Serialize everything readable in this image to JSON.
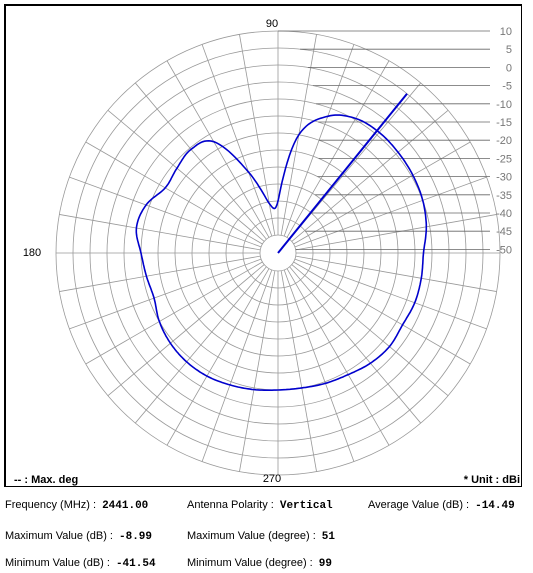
{
  "chart_data": {
    "type": "polar_line",
    "angle_labels": {
      "top": "90",
      "left": "180",
      "bottom": "270"
    },
    "radial_ticks": [
      "10",
      "5",
      "0",
      "-5",
      "-10",
      "-15",
      "-20",
      "-25",
      "-30",
      "-35",
      "-40",
      "-45",
      "-50"
    ],
    "rlim": [
      -50,
      10
    ],
    "radial_rings_db": [
      10,
      5,
      0,
      -5,
      -10,
      -15,
      -20,
      -25,
      -30,
      -35,
      -40,
      -45,
      -50
    ],
    "angular_grid_step_deg": 10,
    "grid": true,
    "series": [
      {
        "color": "#0000cc",
        "angles_deg": [
          0,
          10,
          20,
          30,
          40,
          50,
          60,
          70,
          80,
          90,
          100,
          110,
          120,
          130,
          140,
          150,
          160,
          170,
          180,
          190,
          200,
          210,
          220,
          230,
          240,
          250,
          260,
          270,
          280,
          290,
          300,
          310,
          320,
          330,
          340,
          350
        ],
        "values_db": [
          -12.5,
          -11,
          -10,
          -9.5,
          -9.2,
          -9.0,
          -9.6,
          -12.5,
          -20,
          -40,
          -40.5,
          -30,
          -17.5,
          -15.5,
          -16.5,
          -17,
          -14,
          -13,
          -15,
          -16,
          -16.5,
          -15,
          -14,
          -13.5,
          -13.5,
          -14,
          -14.5,
          -15,
          -15,
          -14.5,
          -14,
          -13,
          -12.5,
          -13,
          -12.5,
          -12.5
        ]
      },
      {
        "name": "Max. deg",
        "color": "#0000cc",
        "marker_angle_deg": 51,
        "marker_value_db": 5
      }
    ],
    "legend": {
      "line_text": "-- : Max. deg",
      "unit_text": "* Unit : dBi"
    }
  },
  "info": {
    "frequency_label": "Frequency (MHz) :",
    "frequency_value": "2441.00",
    "polarity_label": "Antenna Polarity :",
    "polarity_value": "Vertical",
    "average_label": "Average Value (dB) :",
    "average_value": "-14.49",
    "max_db_label": "Maximum Value (dB) :",
    "max_db_value": "-8.99",
    "max_deg_label": "Maximum Value (degree) :",
    "max_deg_value": "51",
    "min_db_label": "Minimum Value (dB) :",
    "min_db_value": "-41.54",
    "min_deg_label": "Minimum Value (degree) :",
    "min_deg_value": "99"
  }
}
